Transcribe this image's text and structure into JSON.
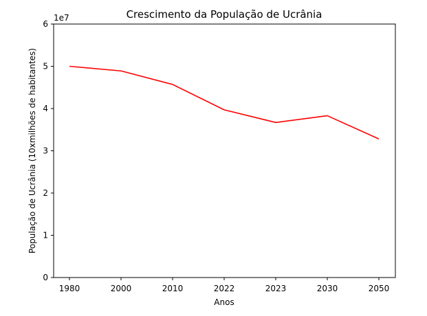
{
  "chart_data": {
    "type": "line",
    "title": "Crescimento da População de Ucrânia",
    "xlabel": "Anos",
    "ylabel": "População de Ucrânia (10xmilhões de habitantes)",
    "y_offset_label": "1e7",
    "categories": [
      "1980",
      "2000",
      "2010",
      "2022",
      "2023",
      "2030",
      "2050"
    ],
    "series": [
      {
        "values": [
          50000000,
          48900000,
          45700000,
          39700000,
          36700000,
          38300000,
          32800000
        ],
        "color": "#ff0000"
      }
    ],
    "ylim": [
      0,
      60000000
    ],
    "yticks": [
      0,
      10000000,
      20000000,
      30000000,
      40000000,
      50000000,
      60000000
    ],
    "ytick_labels": [
      "0",
      "1",
      "2",
      "3",
      "4",
      "5",
      "6"
    ],
    "grid": false,
    "legend": "none"
  }
}
